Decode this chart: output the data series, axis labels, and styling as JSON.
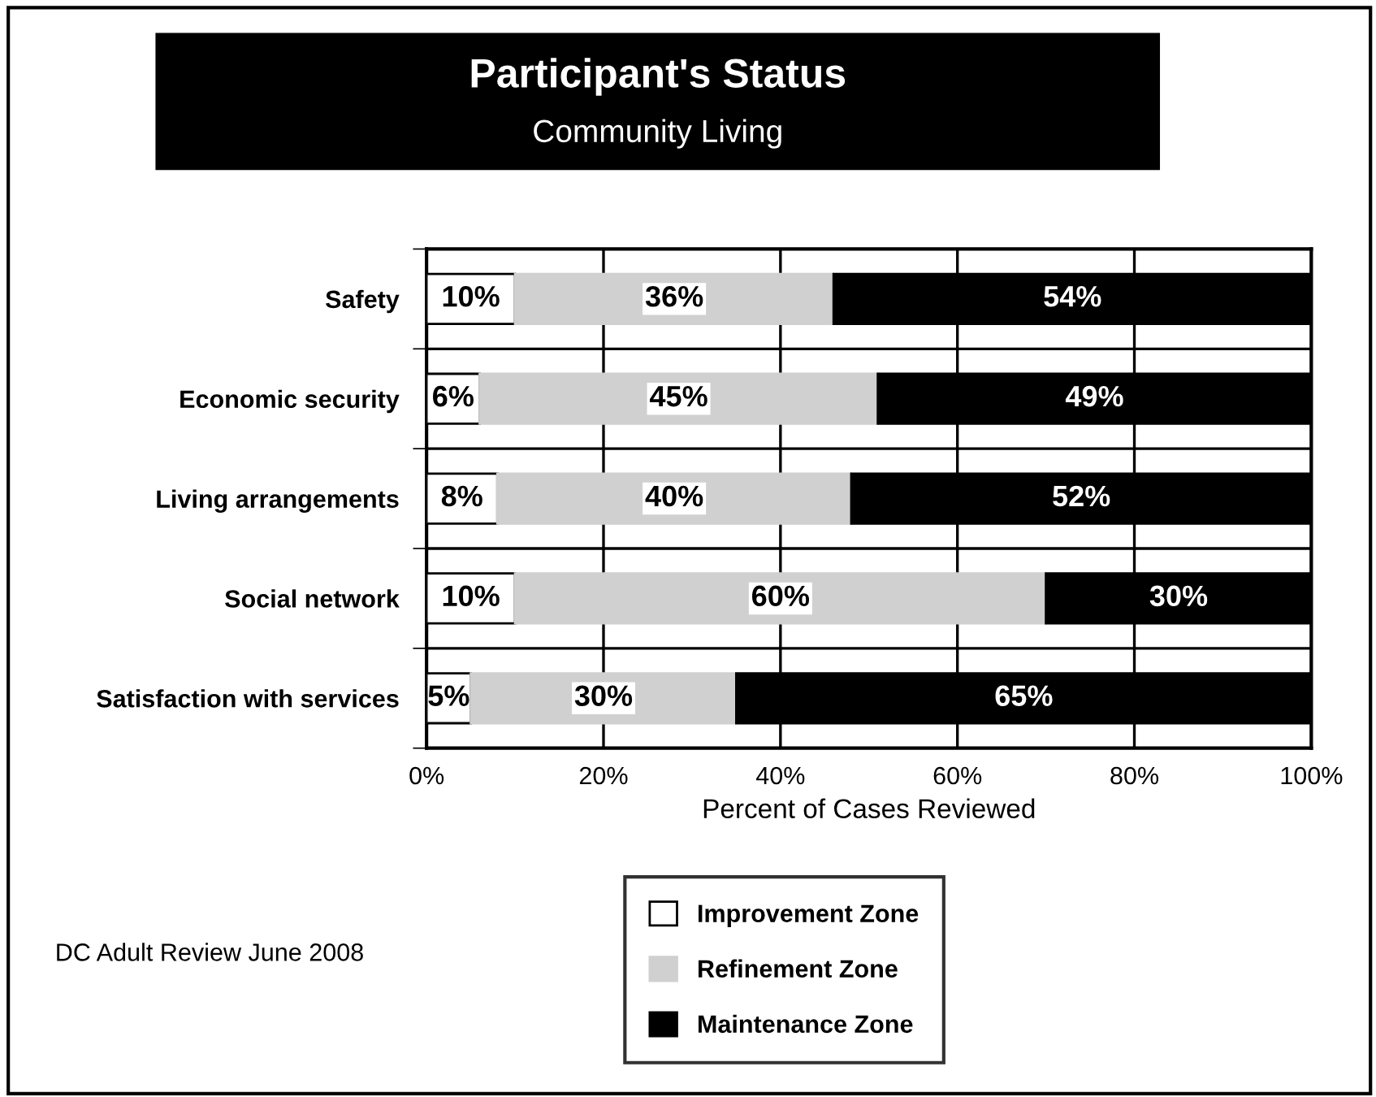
{
  "chart_data": {
    "type": "bar",
    "orientation": "horizontal",
    "stacked": true,
    "title": "Participant's Status",
    "subtitle": "Community Living",
    "xlabel": "Percent of Cases Reviewed",
    "categories": [
      "Safety",
      "Economic security",
      "Living arrangements",
      "Social network",
      "Satisfaction with services"
    ],
    "series": [
      {
        "name": "Improvement Zone",
        "color": "#ffffff",
        "values": [
          10,
          6,
          8,
          10,
          5
        ],
        "value_labels": [
          "10%",
          "6%",
          "8%",
          "10%",
          "5%"
        ]
      },
      {
        "name": "Refinement Zone",
        "color": "#d0d0d0",
        "values": [
          36,
          45,
          40,
          60,
          30
        ],
        "value_labels": [
          "36%",
          "45%",
          "40%",
          "60%",
          "30%"
        ]
      },
      {
        "name": "Maintenance Zone",
        "color": "#000000",
        "values": [
          54,
          49,
          52,
          30,
          65
        ],
        "value_labels": [
          "54%",
          "49%",
          "52%",
          "30%",
          "65%"
        ]
      }
    ],
    "xlim": [
      0,
      100
    ],
    "xticks": [
      {
        "value": 0,
        "label": "0%"
      },
      {
        "value": 20,
        "label": "20%"
      },
      {
        "value": 40,
        "label": "40%"
      },
      {
        "value": 60,
        "label": "60%"
      },
      {
        "value": 80,
        "label": "80%"
      },
      {
        "value": 100,
        "label": "100%"
      }
    ],
    "grid": true,
    "legend": "bottom",
    "annotations": [
      "DC Adult Review June 2008"
    ]
  }
}
